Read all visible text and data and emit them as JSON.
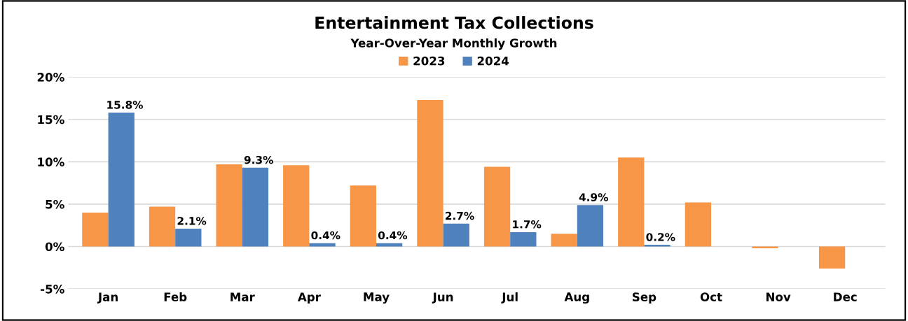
{
  "chart_data": {
    "type": "bar",
    "title": "Entertainment Tax Collections",
    "subtitle": "Year-Over-Year Monthly Growth",
    "categories": [
      "Jan",
      "Feb",
      "Mar",
      "Apr",
      "May",
      "Jun",
      "Jul",
      "Aug",
      "Sep",
      "Oct",
      "Nov",
      "Dec"
    ],
    "series": [
      {
        "name": "2023",
        "color": "#f79646",
        "values": [
          4.0,
          4.7,
          9.7,
          9.6,
          7.2,
          17.3,
          9.4,
          1.5,
          10.5,
          5.2,
          -0.2,
          -2.6
        ]
      },
      {
        "name": "2024",
        "color": "#4f81bd",
        "values": [
          15.8,
          2.1,
          9.3,
          0.4,
          0.4,
          2.7,
          1.7,
          4.9,
          0.2,
          null,
          null,
          null
        ],
        "value_labels": [
          "15.8%",
          "2.1%",
          "9.3%",
          "0.4%",
          "0.4%",
          "2.7%",
          "1.7%",
          "4.9%",
          "0.2%",
          null,
          null,
          null
        ]
      }
    ],
    "ylim": [
      -5,
      20
    ],
    "yticks": [
      {
        "value": -5,
        "label": "-5%"
      },
      {
        "value": 0,
        "label": "0%"
      },
      {
        "value": 5,
        "label": "5%"
      },
      {
        "value": 10,
        "label": "10%"
      },
      {
        "value": 15,
        "label": "15%"
      },
      {
        "value": 20,
        "label": "20%"
      }
    ],
    "grid": "y",
    "legend": "top"
  }
}
